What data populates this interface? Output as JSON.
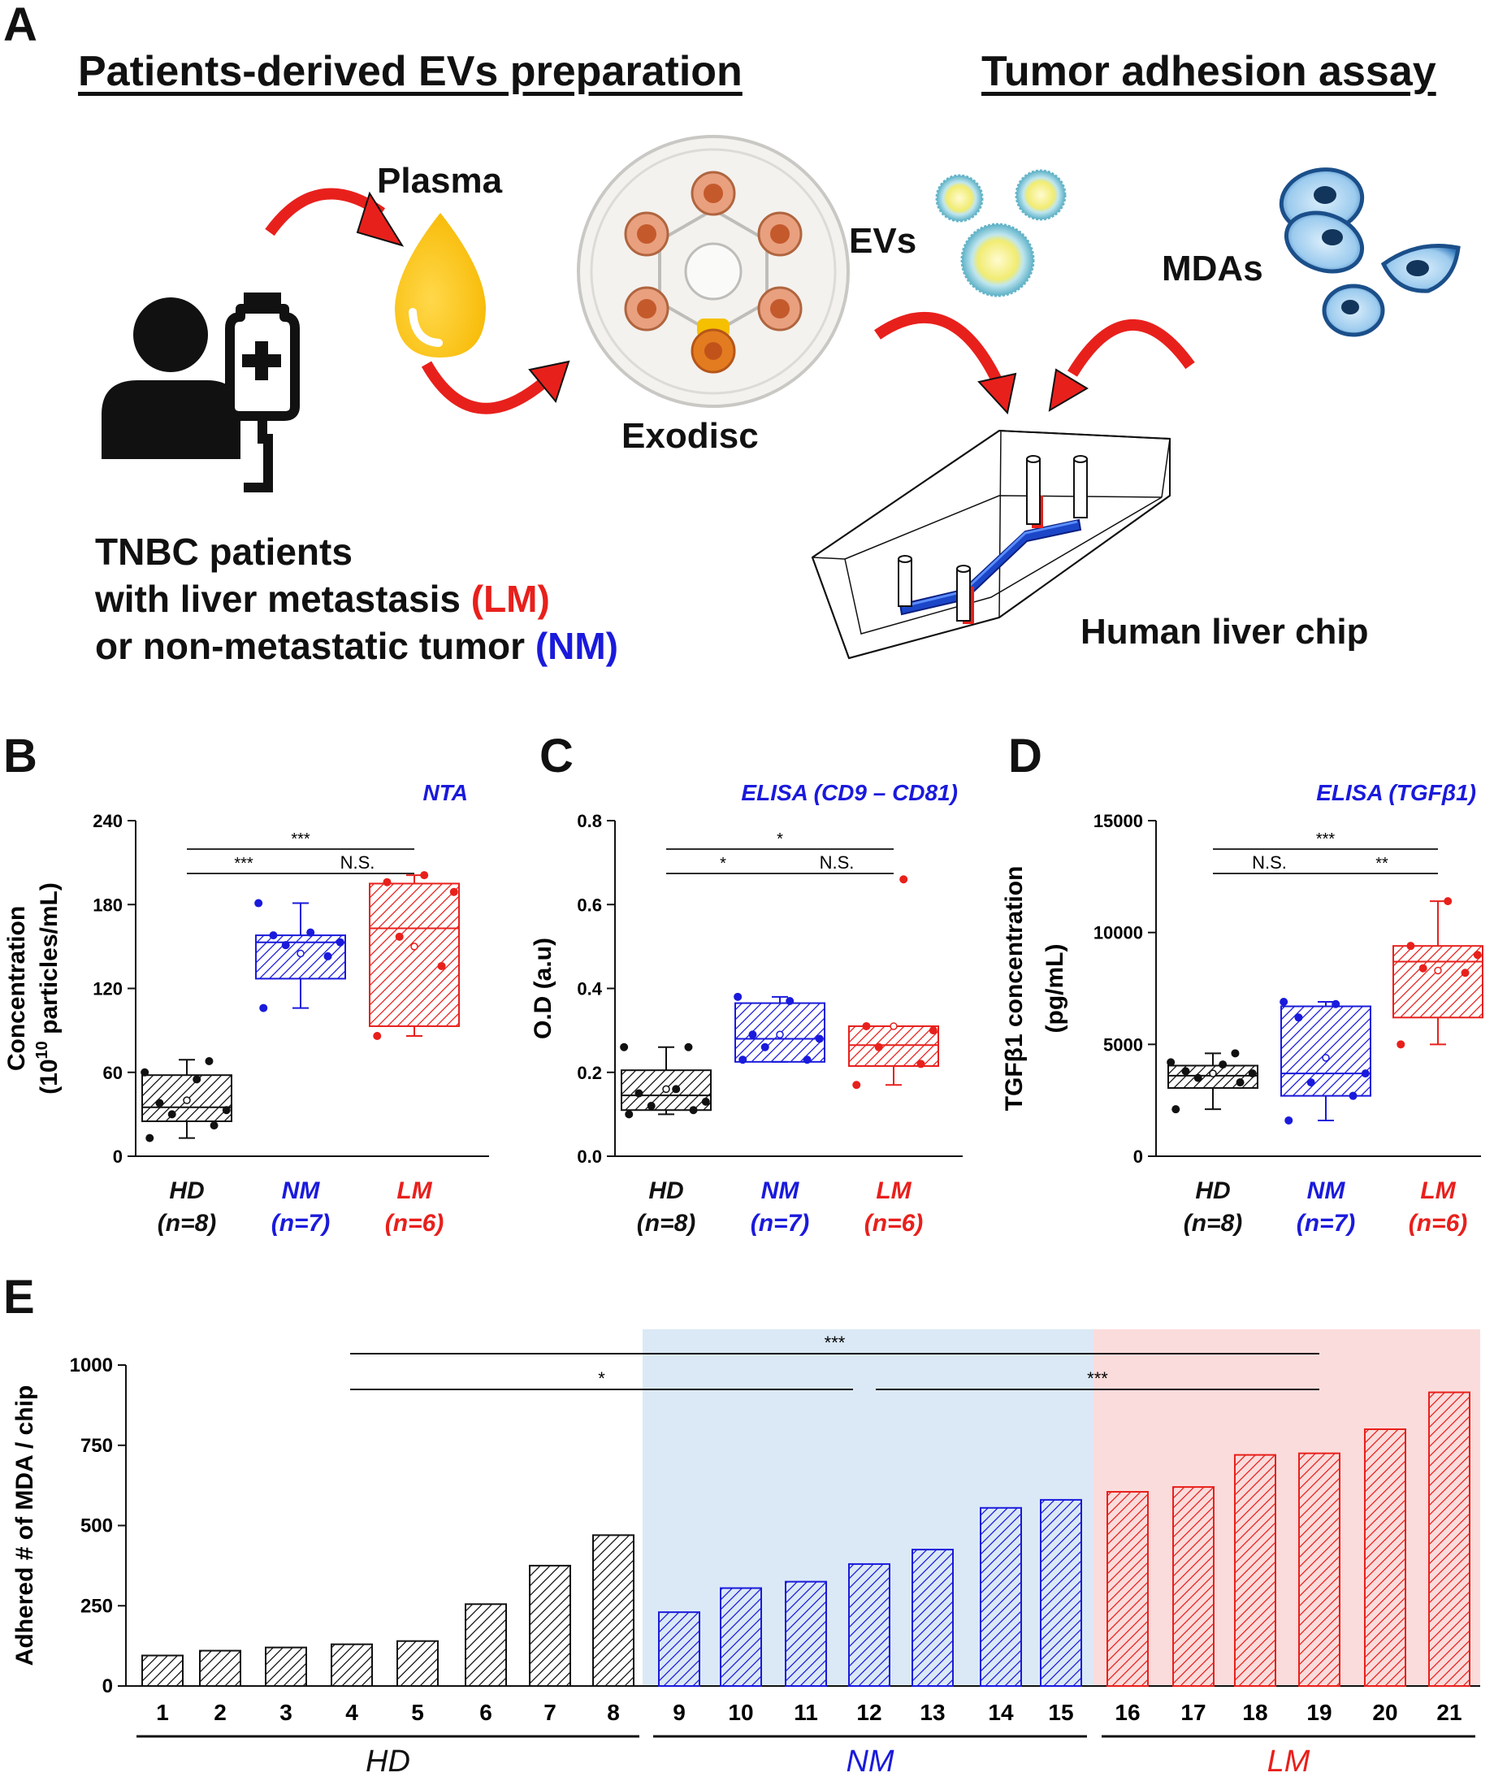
{
  "panel_labels": {
    "a": "A",
    "b": "B",
    "c": "C",
    "d": "D",
    "e": "E"
  },
  "panel_a": {
    "title_left": "Patients-derived EVs preparation",
    "title_right": "Tumor adhesion assay",
    "plasma": "Plasma",
    "exodisc": "Exodisc",
    "evs": "EVs",
    "mdas": "MDAs",
    "chip": "Human liver chip",
    "patients_line1": "TNBC patients",
    "patients_line2_pre": "with liver metastasis ",
    "patients_line2_tag": "(LM)",
    "patients_line3_pre": "or non-metastatic tumor ",
    "patients_line3_tag": "(NM)"
  },
  "colors": {
    "hd": "#111111",
    "nm": "#1a1adc",
    "lm": "#e8201c",
    "nm_bg": "#dbe9f6",
    "lm_bg": "#fbdcdc",
    "title_blue": "#1a1adc"
  },
  "chart_data": [
    {
      "type": "box",
      "panel": "B",
      "title": "NTA",
      "ylabel_line1": "Concentration",
      "ylabel_line2_pre": "(10",
      "ylabel_line2_sup": "10",
      "ylabel_line2_post": " particles/mL)",
      "ylim": [
        0,
        240
      ],
      "yticks": [
        "0",
        "60",
        "120",
        "180",
        "240"
      ],
      "groups": [
        {
          "label": "HD",
          "n": "(n=8)",
          "q1": 25,
          "median": 35,
          "mean": 40,
          "q3": 58,
          "whisker_low": 13,
          "whisker_high": 69,
          "points": [
            13,
            22,
            30,
            33,
            38,
            55,
            60,
            68
          ]
        },
        {
          "label": "NM",
          "n": "(n=7)",
          "q1": 127,
          "median": 153,
          "mean": 145,
          "q3": 158,
          "whisker_low": 106,
          "whisker_high": 181,
          "points": [
            106,
            143,
            151,
            153,
            158,
            160,
            181
          ]
        },
        {
          "label": "LM",
          "n": "(n=6)",
          "q1": 93,
          "median": 163,
          "mean": 150,
          "q3": 195,
          "whisker_low": 86,
          "whisker_high": 201,
          "points": [
            86,
            136,
            157,
            189,
            196,
            201
          ]
        }
      ],
      "sig": [
        {
          "from": 0,
          "to": 1,
          "text": "***",
          "level": 1
        },
        {
          "from": 1,
          "to": 2,
          "text": "N.S.",
          "level": 1
        },
        {
          "from": 0,
          "to": 2,
          "text": "***",
          "level": 2
        }
      ]
    },
    {
      "type": "box",
      "panel": "C",
      "title": "ELISA (CD9 – CD81)",
      "ylabel_line1": "O.D (a.u)",
      "ylim": [
        0,
        0.8
      ],
      "yticks": [
        "0.0",
        "0.2",
        "0.4",
        "0.6",
        "0.8"
      ],
      "groups": [
        {
          "label": "HD",
          "n": "(n=8)",
          "q1": 0.11,
          "median": 0.145,
          "mean": 0.16,
          "q3": 0.205,
          "whisker_low": 0.1,
          "whisker_high": 0.26,
          "points": [
            0.1,
            0.11,
            0.12,
            0.13,
            0.15,
            0.16,
            0.26,
            0.26
          ]
        },
        {
          "label": "NM",
          "n": "(n=7)",
          "q1": 0.225,
          "median": 0.28,
          "mean": 0.29,
          "q3": 0.365,
          "whisker_low": 0.225,
          "whisker_high": 0.38,
          "points": [
            0.23,
            0.23,
            0.26,
            0.28,
            0.29,
            0.37,
            0.38
          ]
        },
        {
          "label": "LM",
          "n": "(n=6)",
          "q1": 0.215,
          "median": 0.265,
          "mean": 0.31,
          "q3": 0.31,
          "whisker_low": 0.17,
          "whisker_high": 0.31,
          "points": [
            0.17,
            0.22,
            0.26,
            0.3,
            0.31,
            0.66
          ]
        }
      ],
      "sig": [
        {
          "from": 0,
          "to": 1,
          "text": "*",
          "level": 1
        },
        {
          "from": 1,
          "to": 2,
          "text": "N.S.",
          "level": 1
        },
        {
          "from": 0,
          "to": 2,
          "text": "*",
          "level": 2
        }
      ]
    },
    {
      "type": "box",
      "panel": "D",
      "title": "ELISA (TGFβ1)",
      "ylabel_line1": "TGFβ1 concentration",
      "ylabel_line2": "(pg/mL)",
      "ylim": [
        0,
        15000
      ],
      "yticks": [
        "0",
        "5000",
        "10000",
        "15000"
      ],
      "groups": [
        {
          "label": "HD",
          "n": "(n=8)",
          "q1": 3050,
          "median": 3600,
          "mean": 3700,
          "q3": 4050,
          "whisker_low": 2100,
          "whisker_high": 4600,
          "points": [
            2100,
            3300,
            3500,
            3700,
            3800,
            4100,
            4200,
            4600
          ]
        },
        {
          "label": "NM",
          "n": "(n=7)",
          "q1": 2700,
          "median": 3700,
          "mean": 4400,
          "q3": 6700,
          "whisker_low": 1600,
          "whisker_high": 6900,
          "points": [
            1600,
            2700,
            3300,
            3700,
            6200,
            6800,
            6900
          ]
        },
        {
          "label": "LM",
          "n": "(n=6)",
          "q1": 6200,
          "median": 8700,
          "mean": 8300,
          "q3": 9400,
          "whisker_low": 5000,
          "whisker_high": 11400,
          "points": [
            5000,
            8200,
            8400,
            9000,
            9400,
            11400
          ]
        }
      ],
      "sig": [
        {
          "from": 0,
          "to": 1,
          "text": "N.S.",
          "level": 1
        },
        {
          "from": 1,
          "to": 2,
          "text": "**",
          "level": 1
        },
        {
          "from": 0,
          "to": 2,
          "text": "***",
          "level": 2
        }
      ]
    },
    {
      "type": "bar",
      "panel": "E",
      "ylabel": "Adhered # of MDA / chip",
      "ylim": [
        0,
        1000
      ],
      "yticks": [
        "0",
        "250",
        "500",
        "750",
        "1000"
      ],
      "categories": [
        "1",
        "2",
        "3",
        "4",
        "5",
        "6",
        "7",
        "8",
        "9",
        "10",
        "11",
        "12",
        "13",
        "14",
        "15",
        "16",
        "17",
        "18",
        "19",
        "20",
        "21"
      ],
      "values": [
        95,
        110,
        120,
        130,
        140,
        255,
        375,
        470,
        230,
        305,
        325,
        380,
        425,
        555,
        580,
        605,
        620,
        720,
        725,
        800,
        915
      ],
      "groups": [
        {
          "label": "HD",
          "start": 0,
          "end": 7
        },
        {
          "label": "NM",
          "start": 8,
          "end": 14
        },
        {
          "label": "LM",
          "start": 15,
          "end": 20
        }
      ],
      "sig": [
        {
          "from": 3,
          "to": 18,
          "text": "***",
          "level": 2
        },
        {
          "from": 3,
          "to": 11,
          "text": "*",
          "level": 1
        },
        {
          "from": 11,
          "to": 18,
          "text": "***",
          "level": 1
        }
      ]
    }
  ]
}
